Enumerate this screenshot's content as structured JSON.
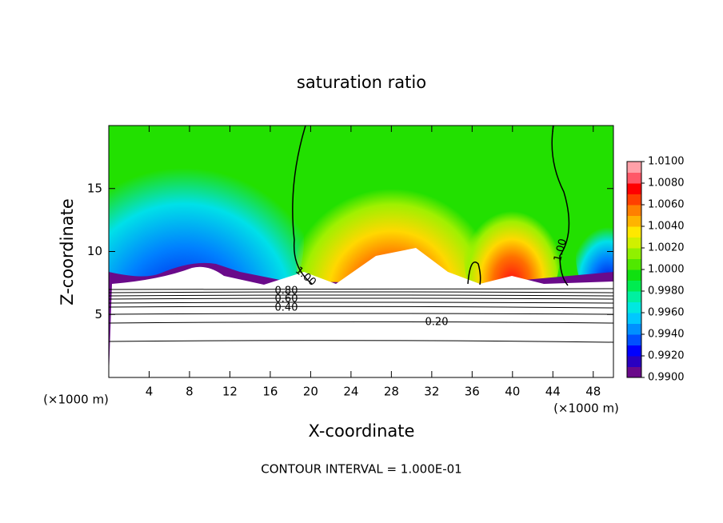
{
  "chart_data": {
    "type": "contour",
    "title": "saturation ratio",
    "xlabel": "X-coordinate",
    "ylabel": "Z-coordinate",
    "x_unit": "(×1000 m)",
    "x_unit_right": "(×1000 m)",
    "annotation": "CONTOUR INTERVAL = 1.000E-01",
    "xlim": [
      0,
      50
    ],
    "ylim": [
      0,
      20
    ],
    "xticks": [
      4,
      8,
      12,
      16,
      20,
      24,
      28,
      32,
      36,
      40,
      44,
      48
    ],
    "yticks": [
      5,
      10,
      15
    ],
    "contour_labels": [
      "1.00",
      "1.00",
      "0.80",
      "0.60",
      "0.40",
      "0.20"
    ],
    "colorbar": {
      "lim": [
        0.99,
        1.01
      ],
      "ticks": [
        {
          "value": 0.99,
          "label": "0.9900"
        },
        {
          "value": 0.992,
          "label": "0.9920"
        },
        {
          "value": 0.994,
          "label": "0.9940"
        },
        {
          "value": 0.996,
          "label": "0.9960"
        },
        {
          "value": 0.998,
          "label": "0.9980"
        },
        {
          "value": 1.0,
          "label": "1.0000"
        },
        {
          "value": 1.002,
          "label": "1.0020"
        },
        {
          "value": 1.004,
          "label": "1.0040"
        },
        {
          "value": 1.006,
          "label": "1.0060"
        },
        {
          "value": 1.008,
          "label": "1.0080"
        },
        {
          "value": 1.01,
          "label": "1.0100"
        }
      ],
      "colors": [
        "#6a0a8a",
        "#2a00c0",
        "#0000ff",
        "#0050ff",
        "#0090ff",
        "#00c8ff",
        "#00e8e0",
        "#00f0a0",
        "#00ec50",
        "#10e010",
        "#50e800",
        "#90f000",
        "#d0f000",
        "#ffe800",
        "#ffb400",
        "#ff8000",
        "#ff4000",
        "#ff0000",
        "#ff5868",
        "#ffa0a8"
      ]
    }
  }
}
